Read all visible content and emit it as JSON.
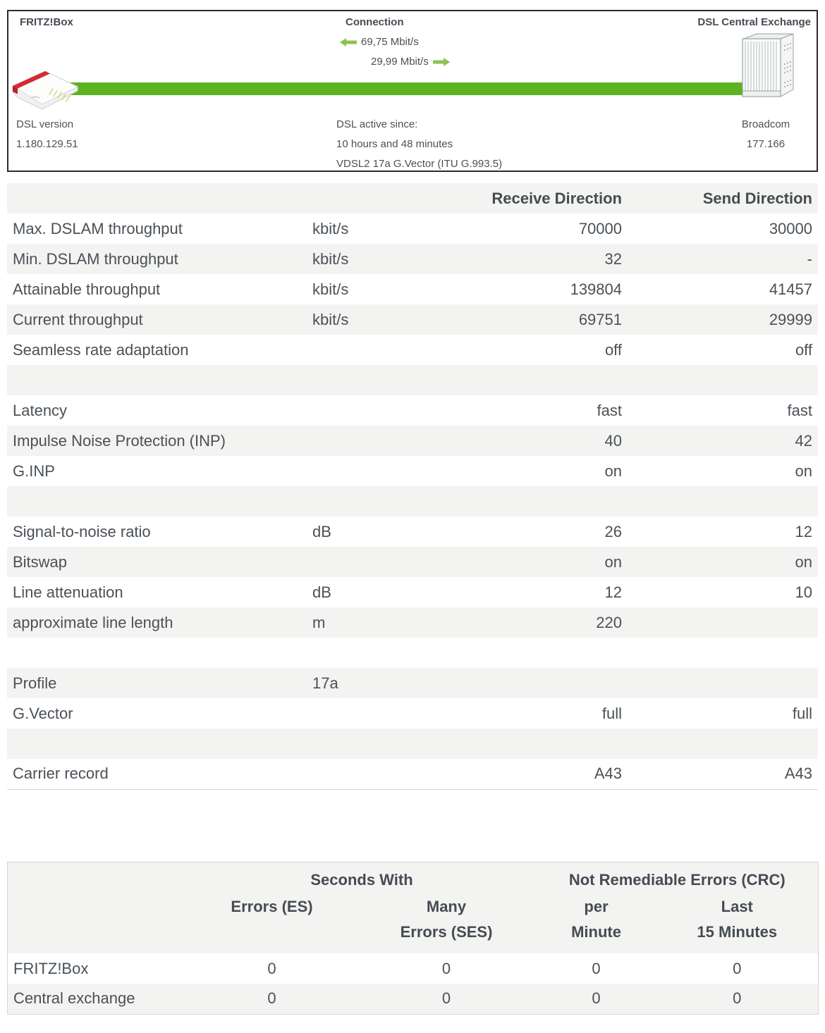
{
  "colors": {
    "text": "#4a5157",
    "heading-text": "#454c53",
    "row-stripe": "#f3f3f1",
    "border-light": "#d9d6cf",
    "panel-border": "#2b2b2b",
    "connection-green": "#5bb321",
    "arrow-green": "#8cc152",
    "router-red": "#d22b35"
  },
  "panel": {
    "fritzbox_label": "FRITZ!Box",
    "connection_label": "Connection",
    "exchange_label": "DSL Central Exchange",
    "downstream_rate": "69,75 Mbit/s",
    "upstream_rate": "29,99 Mbit/s",
    "dsl_version_label": "DSL version",
    "dsl_version_value": "1.180.129.51",
    "active_since_label": "DSL active since:",
    "active_since_value": "10 hours and 48 minutes",
    "dsl_mode": "VDSL2 17a G.Vector (ITU G.993.5)",
    "vendor_name": "Broadcom",
    "vendor_version": "177.166"
  },
  "stats_table": {
    "headers": {
      "receive": "Receive Direction",
      "send": "Send Direction"
    },
    "rows": [
      {
        "label": "Max. DSLAM throughput",
        "unit": "kbit/s",
        "receive": "70000",
        "send": "30000"
      },
      {
        "label": "Min. DSLAM throughput",
        "unit": "kbit/s",
        "receive": "32",
        "send": "-"
      },
      {
        "label": "Attainable throughput",
        "unit": "kbit/s",
        "receive": "139804",
        "send": "41457"
      },
      {
        "label": "Current throughput",
        "unit": "kbit/s",
        "receive": "69751",
        "send": "29999"
      },
      {
        "label": "Seamless rate adaptation",
        "unit": "",
        "receive": "off",
        "send": "off"
      },
      {
        "label": "",
        "unit": "",
        "receive": "",
        "send": ""
      },
      {
        "label": "Latency",
        "unit": "",
        "receive": "fast",
        "send": "fast"
      },
      {
        "label": "Impulse Noise Protection (INP)",
        "unit": "",
        "receive": "40",
        "send": "42"
      },
      {
        "label": "G.INP",
        "unit": "",
        "receive": "on",
        "send": "on"
      },
      {
        "label": "",
        "unit": "",
        "receive": "",
        "send": ""
      },
      {
        "label": "Signal-to-noise ratio",
        "unit": "dB",
        "receive": "26",
        "send": "12"
      },
      {
        "label": "Bitswap",
        "unit": "",
        "receive": "on",
        "send": "on"
      },
      {
        "label": "Line attenuation",
        "unit": "dB",
        "receive": "12",
        "send": "10"
      },
      {
        "label": "approximate line length",
        "unit": "m",
        "receive": "220",
        "send": ""
      },
      {
        "label": "",
        "unit": "",
        "receive": "",
        "send": ""
      },
      {
        "label": "Profile",
        "unit": "17a",
        "receive": "",
        "send": ""
      },
      {
        "label": "G.Vector",
        "unit": "",
        "receive": "full",
        "send": "full"
      },
      {
        "label": "",
        "unit": "",
        "receive": "",
        "send": ""
      },
      {
        "label": "Carrier record",
        "unit": "",
        "receive": "A43",
        "send": "A43"
      }
    ]
  },
  "error_table": {
    "group_headers": [
      "Seconds With",
      "Not Remediable Errors (CRC)"
    ],
    "col_headers": [
      [
        "Errors (ES)"
      ],
      [
        "Many",
        "Errors (SES)"
      ],
      [
        "per",
        "Minute"
      ],
      [
        "Last",
        "15 Minutes"
      ]
    ],
    "rows": [
      {
        "label": "FRITZ!Box",
        "values": [
          "0",
          "0",
          "0",
          "0"
        ]
      },
      {
        "label": "Central exchange",
        "values": [
          "0",
          "0",
          "0",
          "0"
        ]
      }
    ]
  }
}
